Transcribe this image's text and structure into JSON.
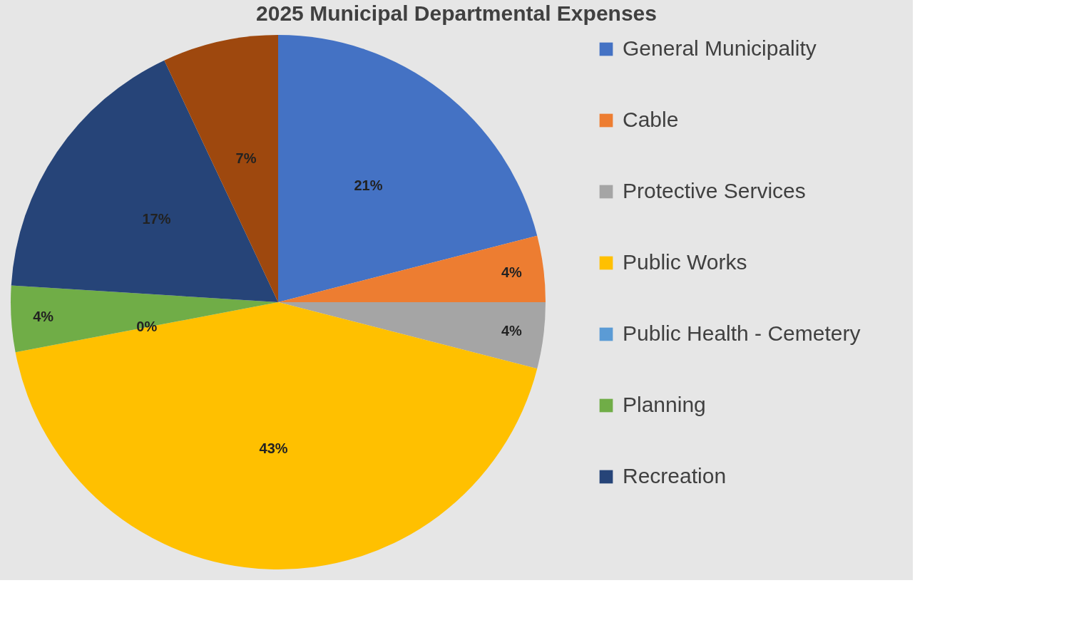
{
  "chart_data": {
    "type": "pie",
    "title": "2025 Municipal Departmental Expenses",
    "categories": [
      "General Municipality",
      "Cable",
      "Protective Services",
      "Public Works",
      "Public Health - Cemetery",
      "Planning",
      "Recreation",
      null
    ],
    "values": [
      21,
      4,
      4,
      43,
      0,
      4,
      17,
      7
    ],
    "value_labels": [
      "21%",
      "4%",
      "4%",
      "43%",
      "0%",
      "4%",
      "17%",
      "7%"
    ],
    "colors": [
      "#4472c4",
      "#ed7d31",
      "#a5a5a5",
      "#ffc000",
      "#5b9bd5",
      "#70ad47",
      "#264478",
      "#9e480e"
    ],
    "legend": "right"
  }
}
